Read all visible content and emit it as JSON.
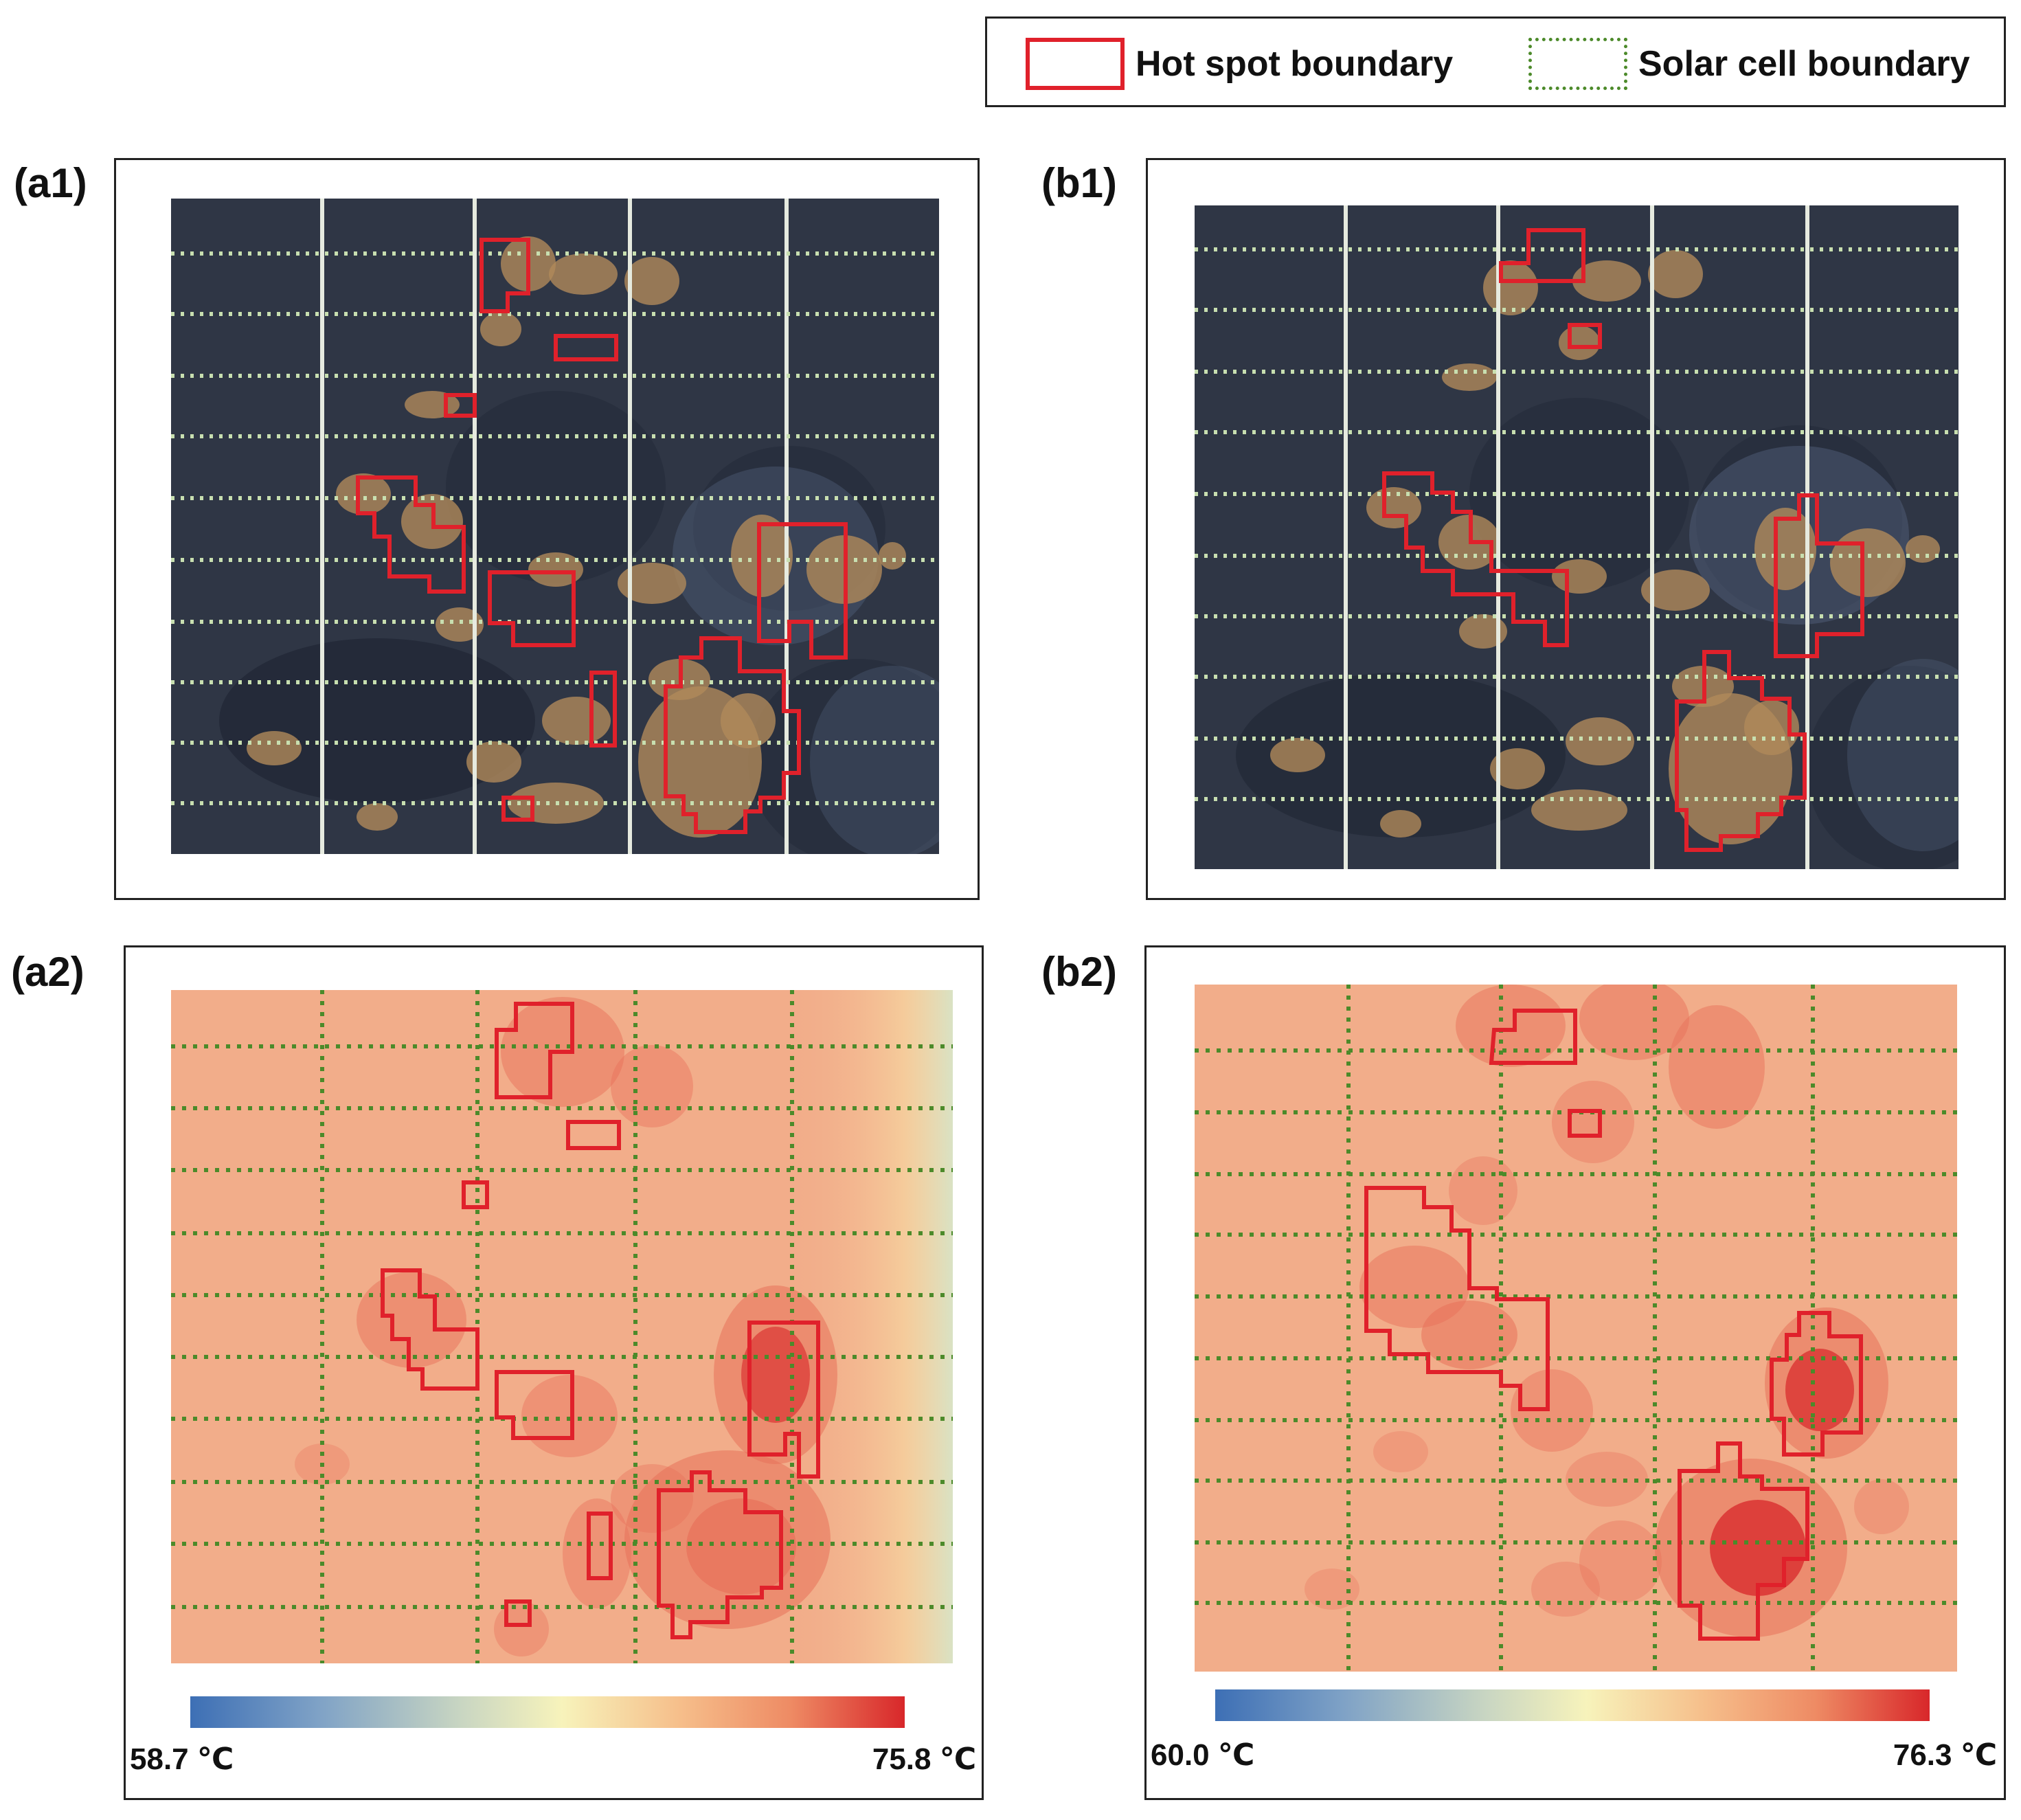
{
  "legend": {
    "hot_spot_label": "Hot spot boundary",
    "solar_cell_label": "Solar cell boundary",
    "hot_color": "#e0212b",
    "cell_color": "#4c8a2a"
  },
  "panels": {
    "a1": {
      "tag": "(a1)"
    },
    "b1": {
      "tag": "(b1)"
    },
    "a2": {
      "tag": "(a2)",
      "colorbar": {
        "min_label": "58.7 ℃",
        "max_label": "75.8 ℃",
        "min": 58.7,
        "max": 75.8
      }
    },
    "b2": {
      "tag": "(b2)",
      "colorbar": {
        "min_label": "60.0 ℃",
        "max_label": "76.3 ℃",
        "min": 60.0,
        "max": 76.3
      }
    }
  },
  "colors": {
    "panel_dark": "#2f3645",
    "dust": "#b08a5a",
    "thermal_base": "#f2ad8a",
    "thermal_hot": "#d8272a"
  }
}
